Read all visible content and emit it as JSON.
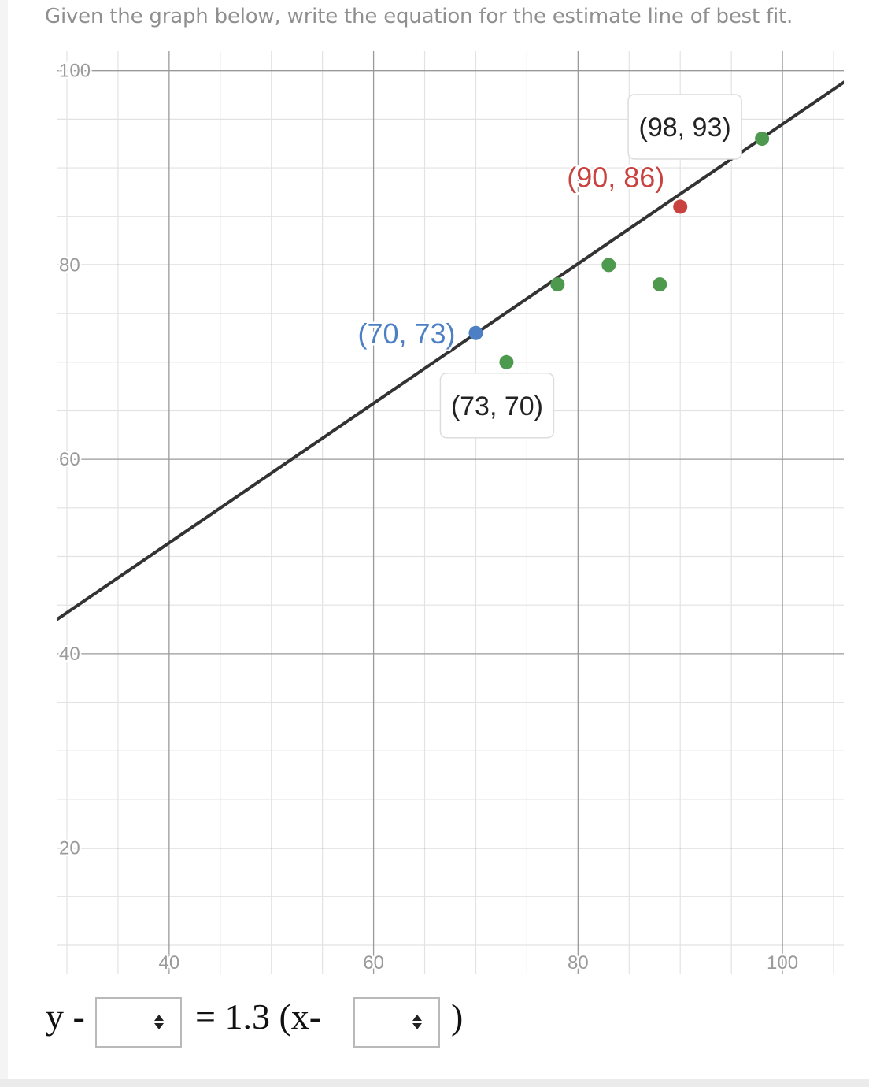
{
  "question": "Given the graph below,  write the equation for the estimate line of best fit.",
  "chart_data": {
    "type": "scatter",
    "xlim": [
      29,
      106
    ],
    "ylim": [
      7,
      102
    ],
    "x_ticks": [
      40,
      60,
      80,
      100
    ],
    "y_ticks": [
      20,
      40,
      60,
      80,
      100
    ],
    "minor_step": 5,
    "grid": true,
    "line": {
      "points": [
        [
          29,
          43.5
        ],
        [
          106,
          98.8
        ]
      ],
      "color": "#333333"
    },
    "points": [
      {
        "x": 70,
        "y": 73,
        "color": "#4c7fc4"
      },
      {
        "x": 73,
        "y": 70,
        "color": "#4d9a4f"
      },
      {
        "x": 78,
        "y": 78,
        "color": "#4d9a4f"
      },
      {
        "x": 83,
        "y": 80,
        "color": "#4d9a4f"
      },
      {
        "x": 88,
        "y": 78,
        "color": "#4d9a4f"
      },
      {
        "x": 90,
        "y": 86,
        "color": "#c9423f"
      },
      {
        "x": 98,
        "y": 93,
        "color": "#4d9a4f"
      }
    ],
    "labels": [
      {
        "text": "(70, 73)",
        "color": "#4c7fc4",
        "boxed": false
      },
      {
        "text": "(73, 70)",
        "color": "#222222",
        "boxed": true
      },
      {
        "text": "(90, 86)",
        "color": "#c9423f",
        "boxed": false
      },
      {
        "text": "(98, 93)",
        "color": "#222222",
        "boxed": true
      }
    ]
  },
  "equation": {
    "prefix": "y -",
    "middle": "= 1.3 (x-",
    "suffix": ")",
    "select1_value": "",
    "select2_value": ""
  },
  "colors": {
    "question_text": "#8f8f8f",
    "grid_major": "#9a9a9a",
    "grid_minor": "#e2e2e2"
  }
}
